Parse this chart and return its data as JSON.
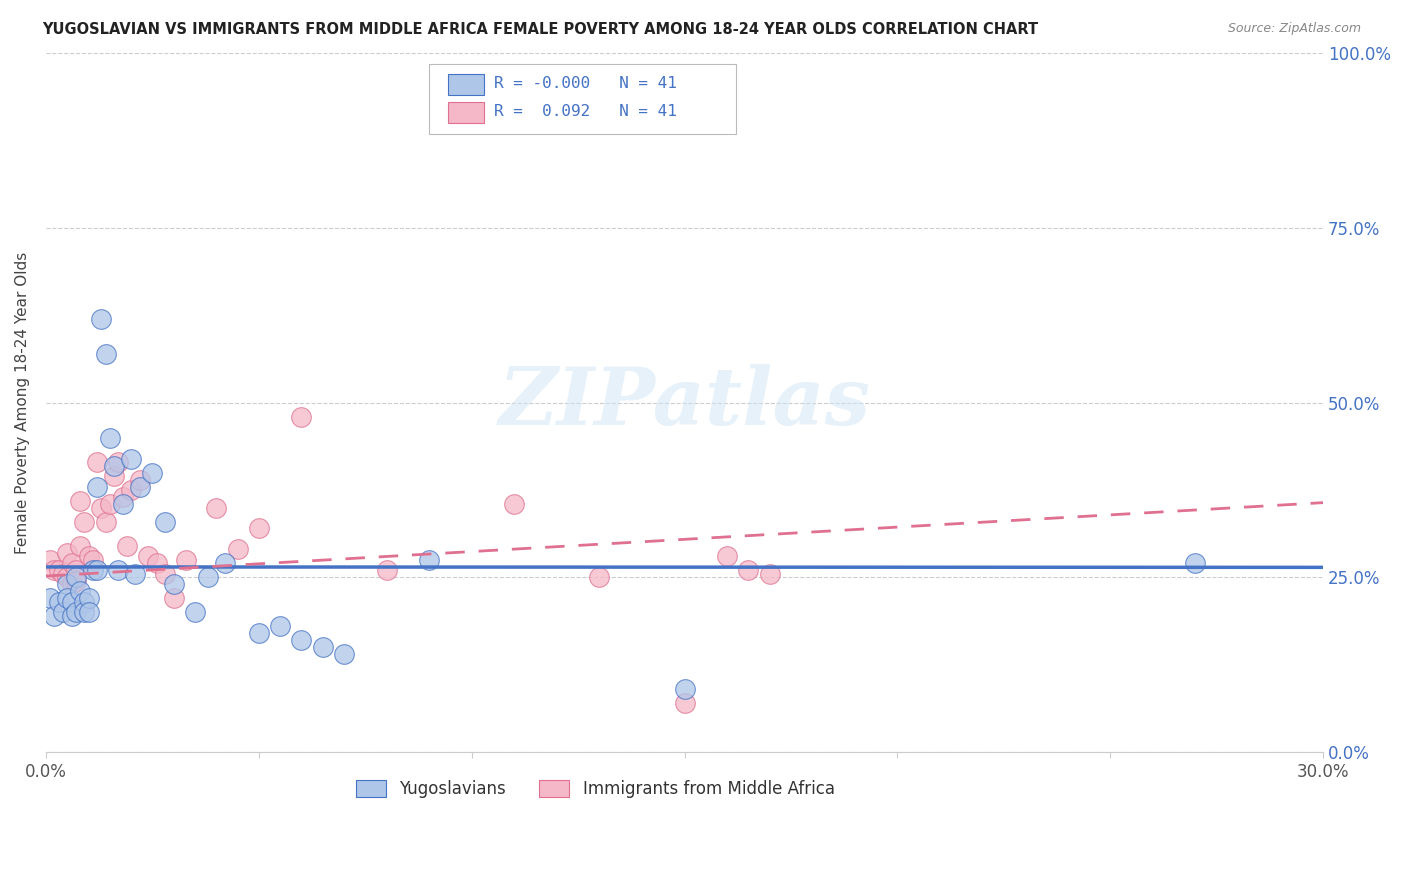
{
  "title": "YUGOSLAVIAN VS IMMIGRANTS FROM MIDDLE AFRICA FEMALE POVERTY AMONG 18-24 YEAR OLDS CORRELATION CHART",
  "source": "Source: ZipAtlas.com",
  "ylabel": "Female Poverty Among 18-24 Year Olds",
  "xlim": [
    0.0,
    0.3
  ],
  "ylim": [
    0.0,
    1.0
  ],
  "xticks": [
    0.0,
    0.05,
    0.1,
    0.15,
    0.2,
    0.25,
    0.3
  ],
  "xtick_labels": [
    "0.0%",
    "",
    "",
    "",
    "",
    "",
    "30.0%"
  ],
  "ytick_labels_right": [
    "0.0%",
    "25.0%",
    "50.0%",
    "75.0%",
    "100.0%"
  ],
  "ytick_vals_right": [
    0.0,
    0.25,
    0.5,
    0.75,
    1.0
  ],
  "legend_label1": "Yugoslavians",
  "legend_label2": "Immigrants from Middle Africa",
  "R1": "-0.000",
  "N1": "41",
  "R2": "0.092",
  "N2": "41",
  "color_blue": "#aec6e8",
  "color_pink": "#f4b8c8",
  "line_color_blue": "#4472c4",
  "line_color_pink": "#e07090",
  "watermark": "ZIPatlas",
  "blue_x": [
    0.001,
    0.002,
    0.003,
    0.004,
    0.005,
    0.005,
    0.006,
    0.006,
    0.007,
    0.007,
    0.008,
    0.009,
    0.009,
    0.01,
    0.01,
    0.011,
    0.012,
    0.012,
    0.013,
    0.014,
    0.015,
    0.016,
    0.017,
    0.018,
    0.02,
    0.021,
    0.022,
    0.025,
    0.028,
    0.03,
    0.035,
    0.038,
    0.042,
    0.05,
    0.055,
    0.06,
    0.065,
    0.07,
    0.09,
    0.15,
    0.27
  ],
  "blue_y": [
    0.22,
    0.195,
    0.215,
    0.2,
    0.24,
    0.22,
    0.215,
    0.195,
    0.2,
    0.25,
    0.23,
    0.215,
    0.2,
    0.22,
    0.2,
    0.26,
    0.38,
    0.26,
    0.62,
    0.57,
    0.45,
    0.41,
    0.26,
    0.355,
    0.42,
    0.255,
    0.38,
    0.4,
    0.33,
    0.24,
    0.2,
    0.25,
    0.27,
    0.17,
    0.18,
    0.16,
    0.15,
    0.14,
    0.275,
    0.09,
    0.27
  ],
  "pink_x": [
    0.001,
    0.002,
    0.003,
    0.004,
    0.005,
    0.005,
    0.006,
    0.006,
    0.007,
    0.007,
    0.008,
    0.008,
    0.009,
    0.01,
    0.011,
    0.012,
    0.013,
    0.014,
    0.015,
    0.016,
    0.017,
    0.018,
    0.019,
    0.02,
    0.022,
    0.024,
    0.026,
    0.028,
    0.03,
    0.033,
    0.04,
    0.045,
    0.05,
    0.06,
    0.08,
    0.11,
    0.13,
    0.15,
    0.16,
    0.165,
    0.17
  ],
  "pink_y": [
    0.275,
    0.26,
    0.26,
    0.255,
    0.25,
    0.285,
    0.27,
    0.24,
    0.26,
    0.245,
    0.36,
    0.295,
    0.33,
    0.28,
    0.275,
    0.415,
    0.35,
    0.33,
    0.355,
    0.395,
    0.415,
    0.365,
    0.295,
    0.375,
    0.39,
    0.28,
    0.27,
    0.255,
    0.22,
    0.275,
    0.35,
    0.29,
    0.32,
    0.48,
    0.26,
    0.355,
    0.25,
    0.07,
    0.28,
    0.26,
    0.255
  ]
}
